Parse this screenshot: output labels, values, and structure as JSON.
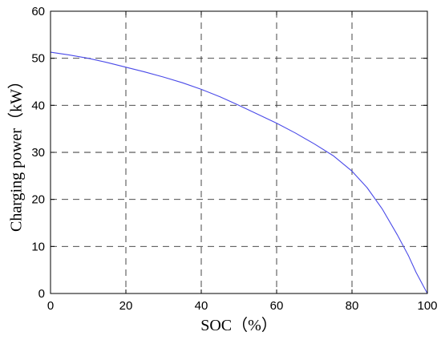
{
  "chart_data": {
    "type": "line",
    "xlabel": "SOC（%）",
    "ylabel": "Charging power（kW）",
    "xlim": [
      0,
      100
    ],
    "ylim": [
      0,
      60
    ],
    "xticks": [
      0,
      20,
      40,
      60,
      80,
      100
    ],
    "yticks": [
      0,
      10,
      20,
      30,
      40,
      50,
      60
    ],
    "grid": true,
    "series_color": "#4a4ae8",
    "series": [
      {
        "x": [
          0,
          5,
          10,
          15,
          20,
          25,
          30,
          35,
          40,
          45,
          50,
          55,
          60,
          65,
          70,
          75,
          80,
          84,
          88,
          92,
          95,
          97,
          99,
          100
        ],
        "y": [
          51.3,
          50.7,
          50.0,
          49.1,
          48.1,
          47.1,
          46.0,
          44.8,
          43.4,
          41.8,
          40.0,
          38.1,
          36.2,
          34.1,
          31.8,
          29.3,
          26.0,
          22.5,
          18.0,
          12.5,
          8.0,
          4.5,
          1.5,
          0
        ]
      }
    ]
  }
}
